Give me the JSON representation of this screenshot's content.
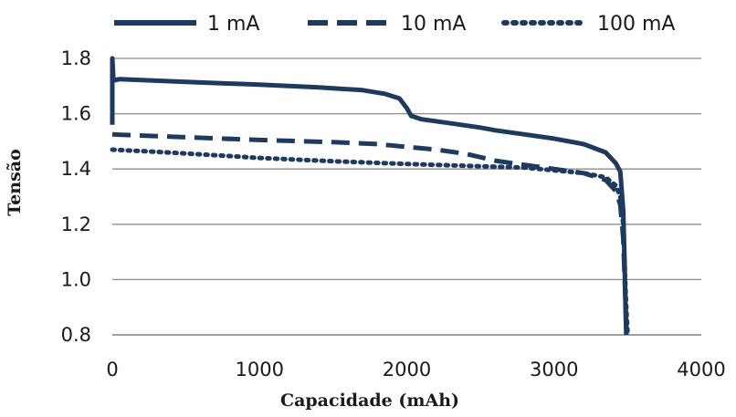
{
  "chart_data": {
    "type": "line",
    "xlabel": "Capacidade (mAh)",
    "ylabel": "Tensão",
    "xlim": [
      0,
      4000
    ],
    "ylim": [
      0.8,
      1.8
    ],
    "xticks": [
      "0",
      "1000",
      "2000",
      "3000",
      "4000"
    ],
    "yticks": [
      "0.8",
      "1.0",
      "1.2",
      "1.4",
      "1.6",
      "1.8"
    ],
    "grid": "horizontal",
    "legend_position": "top",
    "series_color": "#1f3a5f",
    "series": [
      {
        "name": "1 mA",
        "style": "solid",
        "points": [
          [
            0,
            1.56
          ],
          [
            0,
            1.8
          ],
          [
            8,
            1.72
          ],
          [
            50,
            1.725
          ],
          [
            500,
            1.715
          ],
          [
            1000,
            1.705
          ],
          [
            1400,
            1.695
          ],
          [
            1700,
            1.685
          ],
          [
            1850,
            1.672
          ],
          [
            1950,
            1.655
          ],
          [
            2000,
            1.62
          ],
          [
            2030,
            1.592
          ],
          [
            2100,
            1.58
          ],
          [
            2300,
            1.565
          ],
          [
            2500,
            1.55
          ],
          [
            2600,
            1.54
          ],
          [
            2800,
            1.525
          ],
          [
            3000,
            1.51
          ],
          [
            3200,
            1.49
          ],
          [
            3350,
            1.46
          ],
          [
            3420,
            1.42
          ],
          [
            3450,
            1.39
          ],
          [
            3470,
            1.25
          ],
          [
            3480,
            1.05
          ],
          [
            3485,
            0.9
          ],
          [
            3490,
            0.8
          ]
        ]
      },
      {
        "name": "10 mA",
        "style": "dashed",
        "points": [
          [
            0,
            1.525
          ],
          [
            500,
            1.515
          ],
          [
            1000,
            1.505
          ],
          [
            1500,
            1.497
          ],
          [
            1800,
            1.49
          ],
          [
            2000,
            1.48
          ],
          [
            2200,
            1.47
          ],
          [
            2400,
            1.455
          ],
          [
            2600,
            1.43
          ],
          [
            2800,
            1.415
          ],
          [
            3000,
            1.4
          ],
          [
            3200,
            1.385
          ],
          [
            3350,
            1.36
          ],
          [
            3420,
            1.32
          ],
          [
            3450,
            1.27
          ],
          [
            3470,
            1.15
          ],
          [
            3480,
            1.0
          ],
          [
            3490,
            0.85
          ],
          [
            3495,
            0.8
          ]
        ]
      },
      {
        "name": "100 mA",
        "style": "dotted",
        "points": [
          [
            0,
            1.47
          ],
          [
            300,
            1.462
          ],
          [
            700,
            1.45
          ],
          [
            1000,
            1.44
          ],
          [
            1500,
            1.428
          ],
          [
            2000,
            1.418
          ],
          [
            2500,
            1.41
          ],
          [
            2800,
            1.405
          ],
          [
            3000,
            1.395
          ],
          [
            3200,
            1.385
          ],
          [
            3350,
            1.37
          ],
          [
            3420,
            1.34
          ],
          [
            3450,
            1.3
          ],
          [
            3470,
            1.2
          ],
          [
            3480,
            1.05
          ],
          [
            3490,
            0.9
          ],
          [
            3500,
            0.8
          ]
        ]
      }
    ]
  }
}
